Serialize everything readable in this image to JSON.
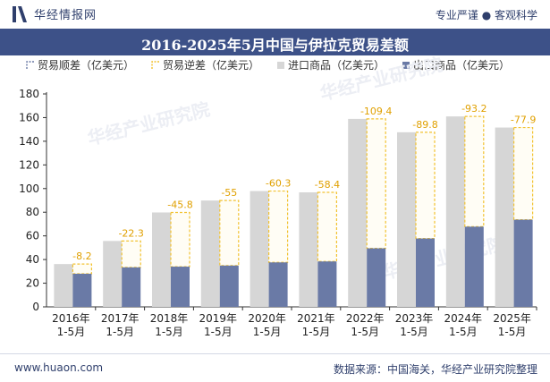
{
  "header": {
    "brand": "华经情报网",
    "tagline_left": "专业严谨",
    "tagline_right": "客观科学"
  },
  "footer": {
    "url": "www.huaon.com",
    "source": "数据来源：中国海关，华经产业研究院整理"
  },
  "watermark": "华经产业研究院",
  "colors": {
    "header_band": "#3d5188",
    "import_bar": "#d6d6d6",
    "export_bar": "#6a7aa6",
    "deficit_outline": "#f2c230",
    "deficit_label": "#e0a000"
  },
  "chart_data": {
    "type": "bar",
    "title": "2016-2025年5月中国与伊拉克贸易差额",
    "categories": [
      "2016年\n1-5月",
      "2017年\n1-5月",
      "2018年\n1-5月",
      "2019年\n1-5月",
      "2020年\n1-5月",
      "2021年\n1-5月",
      "2022年\n1-5月",
      "2023年\n1-5月",
      "2024年\n1-5月",
      "2025年\n1-5月"
    ],
    "legend": [
      "贸易顺差（亿美元）",
      "贸易逆差（亿美元）",
      "进口商品（亿美元）",
      "出口商品（亿美元）"
    ],
    "series": [
      {
        "name": "进口商品（亿美元）",
        "values": [
          36.2,
          55.7,
          79.8,
          89.9,
          97.9,
          96.8,
          158.9,
          147.6,
          161.0,
          151.6
        ]
      },
      {
        "name": "出口商品（亿美元）",
        "values": [
          28.0,
          33.4,
          34.0,
          34.9,
          37.6,
          38.4,
          49.5,
          57.8,
          67.8,
          73.7
        ]
      },
      {
        "name": "贸易逆差（亿美元）",
        "values": [
          -8.2,
          -22.3,
          -45.8,
          -55,
          -60.3,
          -58.4,
          -109.4,
          -89.8,
          -93.2,
          -77.9
        ]
      }
    ],
    "deficit_labels": [
      "-8.2",
      "-22.3",
      "-45.8",
      "-55",
      "-60.3",
      "-58.4",
      "-109.4",
      "-89.8",
      "-93.2",
      "-77.9"
    ],
    "yticks": [
      "0",
      "20",
      "40",
      "60",
      "80",
      "100",
      "120",
      "140",
      "160",
      "180"
    ],
    "ylim": [
      0,
      180
    ],
    "grid": false,
    "legend_position": "top"
  }
}
